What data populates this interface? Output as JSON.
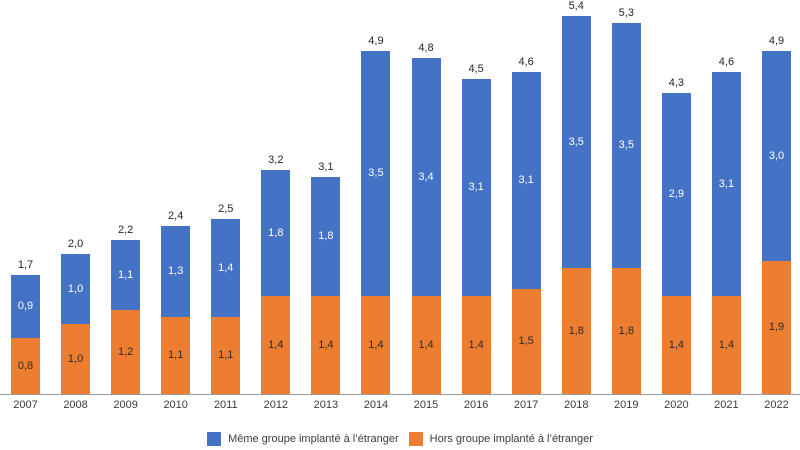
{
  "chart_data": {
    "type": "bar",
    "stacked": true,
    "title": "",
    "xlabel": "",
    "ylabel": "",
    "ylim": [
      0,
      5.6
    ],
    "grid": false,
    "legend_position": "bottom",
    "decimal_separator": ",",
    "categories": [
      "2007",
      "2008",
      "2009",
      "2010",
      "2011",
      "2012",
      "2013",
      "2014",
      "2015",
      "2016",
      "2017",
      "2018",
      "2019",
      "2020",
      "2021",
      "2022"
    ],
    "series": [
      {
        "name": "Même groupe implanté à l’étranger",
        "color": "#4472C4",
        "label_color": "#FFFFFF",
        "stack_position": "top",
        "values": [
          0.9,
          1.0,
          1.1,
          1.3,
          1.4,
          1.8,
          1.8,
          3.5,
          3.4,
          3.1,
          3.1,
          3.5,
          3.5,
          2.9,
          3.1,
          3.0
        ]
      },
      {
        "name": "Hors groupe implanté à l’étranger",
        "color": "#ED7D31",
        "label_color": "#2B2B2B",
        "stack_position": "bottom",
        "values": [
          0.8,
          1.0,
          1.2,
          1.1,
          1.1,
          1.4,
          1.4,
          1.4,
          1.4,
          1.4,
          1.5,
          1.8,
          1.8,
          1.4,
          1.4,
          1.9
        ]
      }
    ],
    "totals": [
      1.7,
      2.0,
      2.2,
      2.4,
      2.5,
      3.2,
      3.1,
      4.9,
      4.8,
      4.5,
      4.6,
      5.4,
      5.3,
      4.3,
      4.6,
      4.9
    ],
    "axis_line_color": "#9B9B9B",
    "tick_label_color": "#3B3B3B",
    "legend": [
      {
        "label": "Même groupe implanté à l’étranger",
        "color": "#4472C4"
      },
      {
        "label": "Hors groupe implanté à l’étranger",
        "color": "#ED7D31"
      }
    ]
  }
}
